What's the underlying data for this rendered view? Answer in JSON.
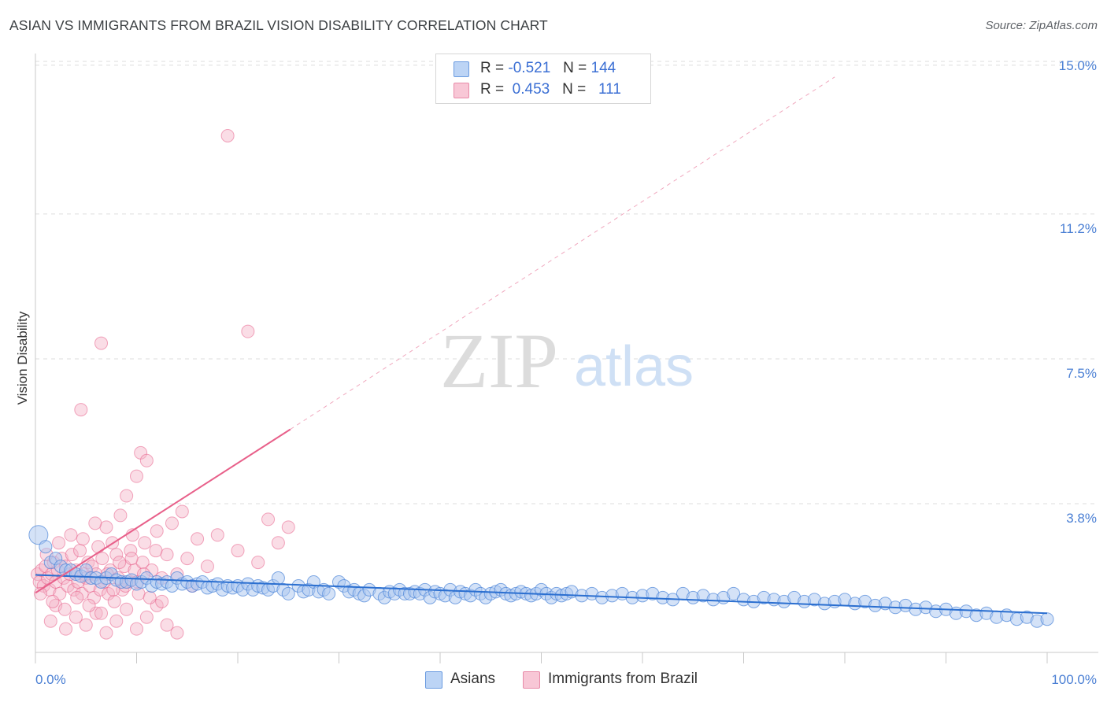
{
  "title": "ASIAN VS IMMIGRANTS FROM BRAZIL VISION DISABILITY CORRELATION CHART",
  "source": "Source: ZipAtlas.com",
  "watermark": {
    "zip": "ZIP",
    "atlas": "atlas"
  },
  "legend_top": {
    "rows": [
      {
        "r_label": "R =",
        "r_value": "-0.521",
        "n_label": "N =",
        "n_value": "144",
        "color": "#a9c6f0"
      },
      {
        "r_label": "R =",
        "r_value": "0.453",
        "n_label": "N =",
        "n_value": "111",
        "color": "#f4b3c8"
      }
    ]
  },
  "legend_bottom": [
    {
      "label": "Asians",
      "color": "#a9c6f0"
    },
    {
      "label": "Immigrants from Brazil",
      "color": "#f4b3c8"
    }
  ],
  "chart_data": {
    "type": "scatter",
    "ylabel": "Vision Disability",
    "xlabel": "",
    "xlim": [
      0,
      100
    ],
    "ylim": [
      0,
      15.3
    ],
    "x_tick_labels": [
      "0.0%",
      "100.0%"
    ],
    "y_ticks": [
      {
        "value": 3.8,
        "label": "3.8%"
      },
      {
        "value": 7.5,
        "label": "7.5%"
      },
      {
        "value": 11.2,
        "label": "11.2%"
      },
      {
        "value": 15.0,
        "label": "15.0%"
      }
    ],
    "colors": {
      "asians": "#4d86d9",
      "asians_fill": "#a9c6f0",
      "brazil": "#e8608a",
      "brazil_fill": "#f4b3c8",
      "asians_line": "#2b6fd0",
      "brazil_line": "#e8608a"
    },
    "series": [
      {
        "name": "Asians",
        "trend": {
          "x0": 0,
          "y0": 1.98,
          "x1": 100,
          "y1": 1.0
        },
        "points": [
          [
            0.3,
            3.0
          ],
          [
            1.0,
            2.7
          ],
          [
            1.5,
            2.3
          ],
          [
            2.0,
            2.4
          ],
          [
            2.5,
            2.2
          ],
          [
            3.0,
            2.1
          ],
          [
            3.5,
            2.1
          ],
          [
            4.0,
            2.0
          ],
          [
            4.5,
            1.95
          ],
          [
            5.0,
            2.1
          ],
          [
            5.5,
            1.9
          ],
          [
            6.0,
            1.9
          ],
          [
            6.5,
            1.8
          ],
          [
            7.0,
            1.9
          ],
          [
            7.5,
            2.0
          ],
          [
            8.0,
            1.85
          ],
          [
            8.5,
            1.8
          ],
          [
            9.0,
            1.8
          ],
          [
            9.5,
            1.85
          ],
          [
            10.0,
            1.75
          ],
          [
            10.5,
            1.8
          ],
          [
            11.0,
            1.9
          ],
          [
            11.5,
            1.7
          ],
          [
            12.0,
            1.8
          ],
          [
            12.5,
            1.75
          ],
          [
            13.0,
            1.8
          ],
          [
            13.5,
            1.7
          ],
          [
            14.0,
            1.9
          ],
          [
            14.5,
            1.75
          ],
          [
            15.0,
            1.8
          ],
          [
            15.5,
            1.7
          ],
          [
            16.0,
            1.75
          ],
          [
            16.5,
            1.8
          ],
          [
            17.0,
            1.65
          ],
          [
            17.5,
            1.7
          ],
          [
            18.0,
            1.75
          ],
          [
            18.5,
            1.6
          ],
          [
            19.0,
            1.7
          ],
          [
            19.5,
            1.65
          ],
          [
            20.0,
            1.7
          ],
          [
            20.5,
            1.6
          ],
          [
            21.0,
            1.75
          ],
          [
            21.5,
            1.6
          ],
          [
            22.0,
            1.7
          ],
          [
            22.5,
            1.65
          ],
          [
            23.0,
            1.6
          ],
          [
            23.5,
            1.7
          ],
          [
            24.0,
            1.9
          ],
          [
            24.5,
            1.6
          ],
          [
            25.0,
            1.5
          ],
          [
            26.0,
            1.7
          ],
          [
            26.5,
            1.55
          ],
          [
            27.0,
            1.6
          ],
          [
            27.5,
            1.8
          ],
          [
            28.0,
            1.55
          ],
          [
            28.5,
            1.6
          ],
          [
            29.0,
            1.5
          ],
          [
            30.0,
            1.8
          ],
          [
            30.5,
            1.7
          ],
          [
            31.0,
            1.55
          ],
          [
            31.5,
            1.6
          ],
          [
            32.0,
            1.5
          ],
          [
            32.5,
            1.45
          ],
          [
            33.0,
            1.6
          ],
          [
            34.0,
            1.5
          ],
          [
            34.5,
            1.4
          ],
          [
            35.0,
            1.55
          ],
          [
            35.5,
            1.5
          ],
          [
            36.0,
            1.6
          ],
          [
            36.5,
            1.5
          ],
          [
            37.0,
            1.5
          ],
          [
            37.5,
            1.55
          ],
          [
            38.0,
            1.5
          ],
          [
            38.5,
            1.6
          ],
          [
            39.0,
            1.4
          ],
          [
            39.5,
            1.55
          ],
          [
            40.0,
            1.5
          ],
          [
            40.5,
            1.45
          ],
          [
            41.0,
            1.6
          ],
          [
            41.5,
            1.4
          ],
          [
            42.0,
            1.55
          ],
          [
            42.5,
            1.5
          ],
          [
            43.0,
            1.45
          ],
          [
            43.5,
            1.6
          ],
          [
            44.0,
            1.5
          ],
          [
            44.5,
            1.4
          ],
          [
            45.0,
            1.5
          ],
          [
            45.5,
            1.55
          ],
          [
            46.0,
            1.6
          ],
          [
            46.5,
            1.5
          ],
          [
            47.0,
            1.45
          ],
          [
            47.5,
            1.5
          ],
          [
            48.0,
            1.55
          ],
          [
            48.5,
            1.5
          ],
          [
            49.0,
            1.45
          ],
          [
            49.5,
            1.5
          ],
          [
            50.0,
            1.6
          ],
          [
            50.5,
            1.5
          ],
          [
            51.0,
            1.4
          ],
          [
            51.5,
            1.5
          ],
          [
            52.0,
            1.45
          ],
          [
            52.5,
            1.5
          ],
          [
            53.0,
            1.55
          ],
          [
            54.0,
            1.45
          ],
          [
            55.0,
            1.5
          ],
          [
            56.0,
            1.4
          ],
          [
            57.0,
            1.45
          ],
          [
            58.0,
            1.5
          ],
          [
            59.0,
            1.4
          ],
          [
            60.0,
            1.45
          ],
          [
            61.0,
            1.5
          ],
          [
            62.0,
            1.4
          ],
          [
            63.0,
            1.35
          ],
          [
            64.0,
            1.5
          ],
          [
            65.0,
            1.4
          ],
          [
            66.0,
            1.45
          ],
          [
            67.0,
            1.35
          ],
          [
            68.0,
            1.4
          ],
          [
            69.0,
            1.5
          ],
          [
            70.0,
            1.35
          ],
          [
            71.0,
            1.3
          ],
          [
            72.0,
            1.4
          ],
          [
            73.0,
            1.35
          ],
          [
            74.0,
            1.3
          ],
          [
            75.0,
            1.4
          ],
          [
            76.0,
            1.3
          ],
          [
            77.0,
            1.35
          ],
          [
            78.0,
            1.25
          ],
          [
            79.0,
            1.3
          ],
          [
            80.0,
            1.35
          ],
          [
            81.0,
            1.25
          ],
          [
            82.0,
            1.3
          ],
          [
            83.0,
            1.2
          ],
          [
            84.0,
            1.25
          ],
          [
            85.0,
            1.15
          ],
          [
            86.0,
            1.2
          ],
          [
            87.0,
            1.1
          ],
          [
            88.0,
            1.15
          ],
          [
            89.0,
            1.05
          ],
          [
            90.0,
            1.1
          ],
          [
            91.0,
            1.0
          ],
          [
            92.0,
            1.05
          ],
          [
            93.0,
            0.95
          ],
          [
            94.0,
            1.0
          ],
          [
            95.0,
            0.9
          ],
          [
            96.0,
            0.95
          ],
          [
            97.0,
            0.85
          ],
          [
            98.0,
            0.9
          ],
          [
            99.0,
            0.8
          ],
          [
            100.0,
            0.85
          ]
        ]
      },
      {
        "name": "Immigrants from Brazil",
        "trend": {
          "x0": 0,
          "y0": 1.52,
          "x1": 25.2,
          "y1": 5.7
        },
        "dashed_extension": {
          "x0": 25.2,
          "y0": 5.7,
          "x1": 79,
          "y1": 14.7
        },
        "points": [
          [
            0.2,
            2.0
          ],
          [
            0.4,
            1.8
          ],
          [
            0.6,
            2.1
          ],
          [
            0.8,
            1.7
          ],
          [
            1.0,
            2.2
          ],
          [
            1.2,
            1.9
          ],
          [
            1.4,
            1.6
          ],
          [
            1.6,
            2.0
          ],
          [
            1.8,
            2.3
          ],
          [
            2.0,
            1.8
          ],
          [
            2.2,
            2.1
          ],
          [
            2.4,
            1.5
          ],
          [
            2.6,
            2.4
          ],
          [
            2.8,
            1.9
          ],
          [
            3.0,
            2.2
          ],
          [
            3.2,
            1.7
          ],
          [
            3.4,
            2.0
          ],
          [
            3.6,
            2.5
          ],
          [
            3.8,
            1.6
          ],
          [
            4.0,
            2.1
          ],
          [
            4.2,
            1.8
          ],
          [
            4.4,
            2.6
          ],
          [
            4.6,
            1.5
          ],
          [
            4.8,
            2.0
          ],
          [
            5.0,
            1.9
          ],
          [
            5.2,
            2.3
          ],
          [
            5.4,
            1.7
          ],
          [
            5.6,
            2.2
          ],
          [
            5.8,
            1.4
          ],
          [
            6.0,
            2.0
          ],
          [
            6.2,
            2.7
          ],
          [
            6.4,
            1.6
          ],
          [
            6.6,
            2.4
          ],
          [
            6.8,
            1.8
          ],
          [
            7.0,
            3.2
          ],
          [
            7.2,
            1.5
          ],
          [
            7.4,
            2.1
          ],
          [
            7.6,
            2.8
          ],
          [
            7.8,
            1.3
          ],
          [
            8.0,
            2.5
          ],
          [
            8.2,
            1.9
          ],
          [
            8.4,
            3.5
          ],
          [
            8.6,
            1.6
          ],
          [
            8.8,
            2.2
          ],
          [
            9.0,
            4.0
          ],
          [
            9.2,
            1.8
          ],
          [
            9.4,
            2.6
          ],
          [
            9.6,
            3.0
          ],
          [
            9.8,
            2.1
          ],
          [
            10.0,
            4.5
          ],
          [
            10.2,
            1.5
          ],
          [
            10.4,
            5.1
          ],
          [
            10.6,
            2.3
          ],
          [
            10.8,
            2.8
          ],
          [
            11.0,
            4.9
          ],
          [
            11.5,
            2.1
          ],
          [
            12.0,
            3.1
          ],
          [
            12.5,
            1.9
          ],
          [
            13.0,
            2.5
          ],
          [
            13.5,
            3.3
          ],
          [
            14.0,
            2.0
          ],
          [
            14.5,
            3.6
          ],
          [
            15.0,
            2.4
          ],
          [
            15.5,
            1.7
          ],
          [
            16.0,
            2.9
          ],
          [
            17.0,
            2.2
          ],
          [
            18.0,
            3.0
          ],
          [
            19.0,
            13.2
          ],
          [
            20.0,
            2.6
          ],
          [
            21.0,
            8.2
          ],
          [
            22.0,
            2.3
          ],
          [
            23.0,
            3.4
          ],
          [
            24.0,
            2.8
          ],
          [
            25.0,
            3.2
          ],
          [
            4.5,
            6.2
          ],
          [
            6.5,
            7.9
          ],
          [
            1.5,
            0.8
          ],
          [
            2.0,
            1.2
          ],
          [
            3.0,
            0.6
          ],
          [
            4.0,
            0.9
          ],
          [
            5.0,
            0.7
          ],
          [
            6.0,
            1.0
          ],
          [
            7.0,
            0.5
          ],
          [
            8.0,
            0.8
          ],
          [
            9.0,
            1.1
          ],
          [
            10.0,
            0.6
          ],
          [
            11.0,
            0.9
          ],
          [
            12.0,
            1.2
          ],
          [
            13.0,
            0.7
          ],
          [
            14.0,
            0.5
          ],
          [
            0.5,
            1.5
          ],
          [
            1.1,
            2.5
          ],
          [
            1.7,
            1.3
          ],
          [
            2.3,
            2.8
          ],
          [
            2.9,
            1.1
          ],
          [
            3.5,
            3.0
          ],
          [
            4.1,
            1.4
          ],
          [
            4.7,
            2.9
          ],
          [
            5.3,
            1.2
          ],
          [
            5.9,
            3.3
          ],
          [
            6.5,
            1.0
          ],
          [
            7.1,
            2.0
          ],
          [
            7.7,
            1.6
          ],
          [
            8.3,
            2.3
          ],
          [
            8.9,
            1.7
          ],
          [
            9.5,
            2.4
          ],
          [
            10.1,
            1.8
          ],
          [
            10.7,
            2.0
          ],
          [
            11.3,
            1.4
          ],
          [
            11.9,
            2.6
          ],
          [
            12.5,
            1.3
          ]
        ]
      }
    ]
  }
}
